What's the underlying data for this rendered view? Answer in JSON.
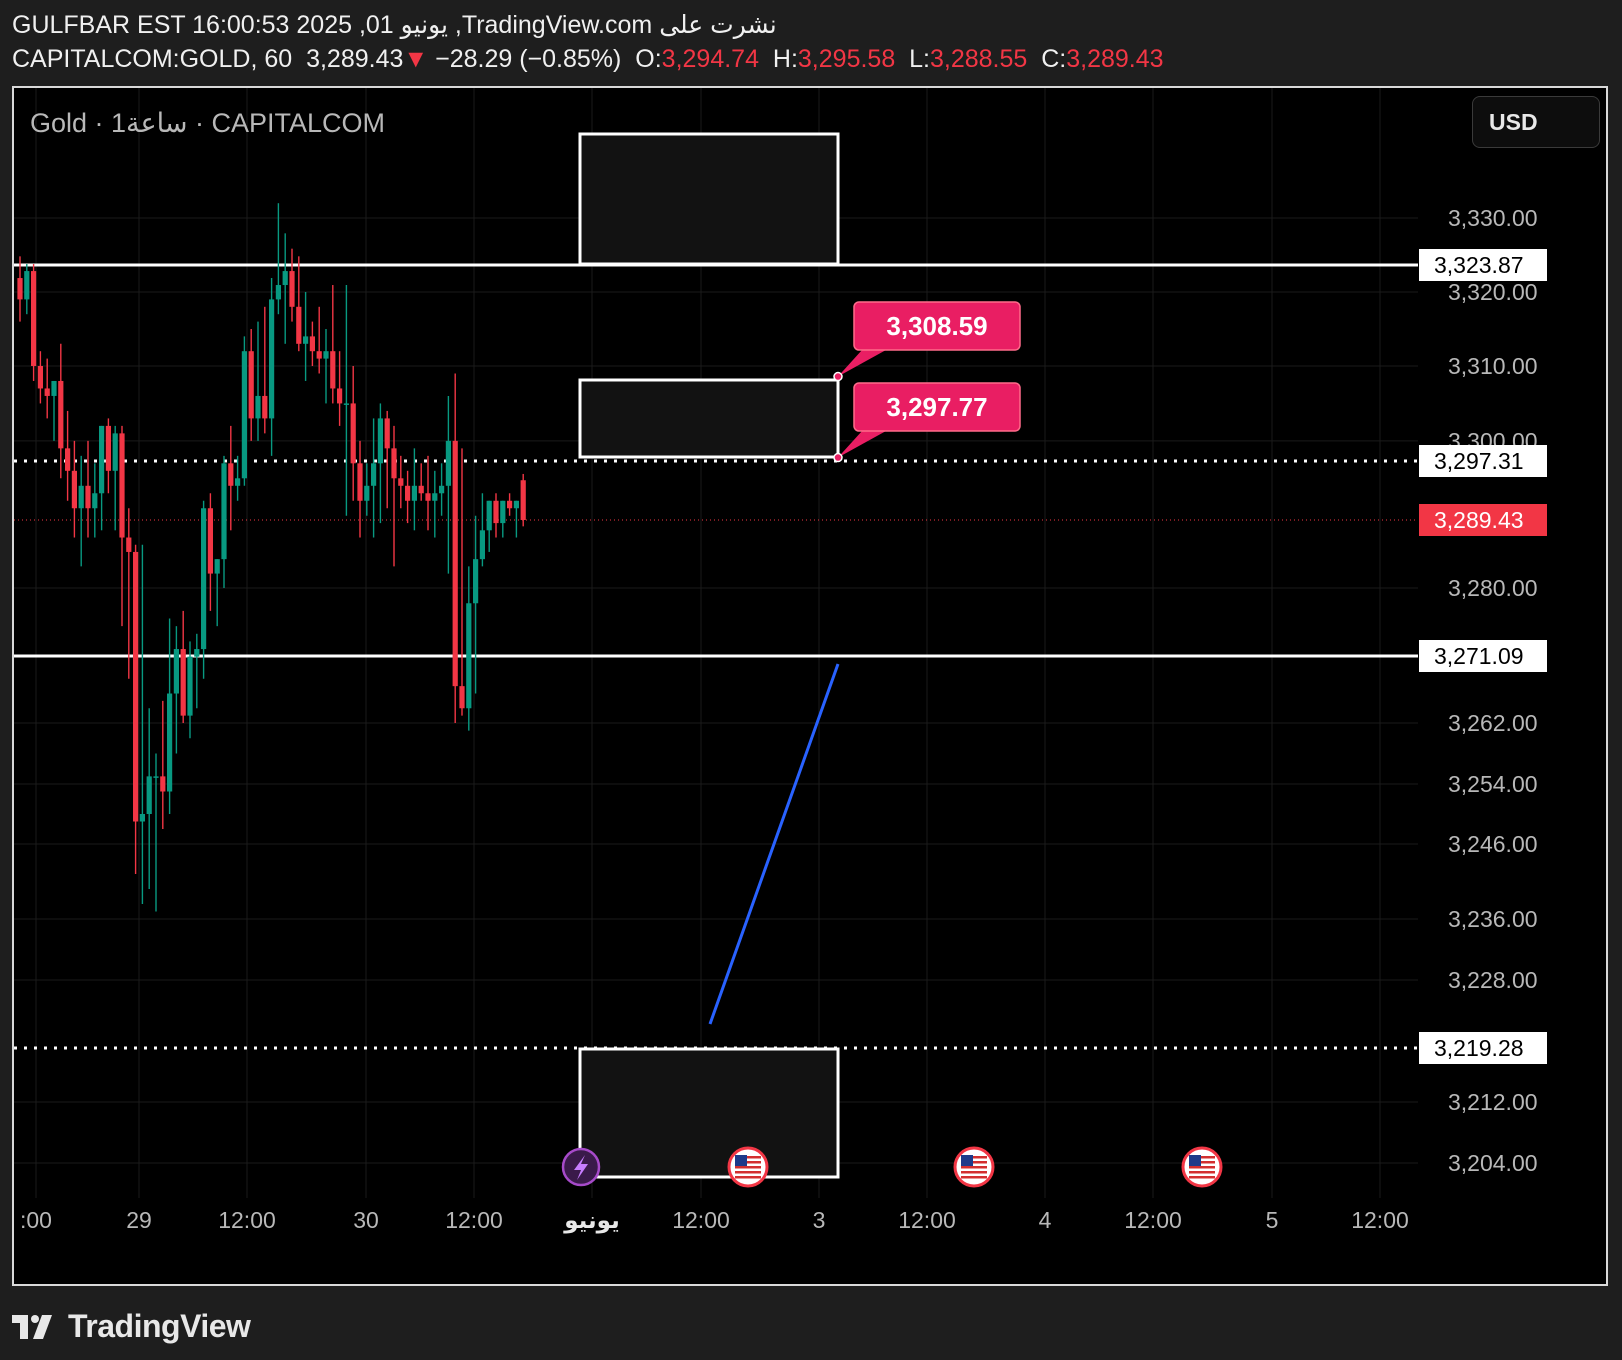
{
  "header": {
    "line1": "GULFBAR EST 16:00:53 2025 ,01 يونيو ,TradingView.com نشرت على",
    "symbol": "CAPITALCOM:GOLD, 60",
    "last": "3,289.43",
    "change": "−28.29 (−0.85%)",
    "o_label": "O:",
    "o": "3,294.74",
    "h_label": "H:",
    "h": "3,295.58",
    "l_label": "L:",
    "l": "3,288.55",
    "c_label": "C:",
    "c": "3,289.43"
  },
  "legend": "Gold · 1ساعة · CAPITALCOM",
  "currency_button": "USD",
  "footer": {
    "brand": "TradingView"
  },
  "colors": {
    "up": "#089981",
    "down": "#f23645",
    "price_label": "#f23645",
    "callout": "#e91e63",
    "trendline": "#2962ff",
    "grid": "#1a1a1a"
  },
  "chart_data": {
    "type": "candlestick",
    "interval": "60",
    "instrument": "CAPITALCOM:GOLD",
    "current_price": 3289.43,
    "y_tick_labels": [
      "3,330.00",
      "3,320.00",
      "3,310.00",
      "3,300.00",
      "3,280.00",
      "3,262.00",
      "3,254.00",
      "3,246.00",
      "3,236.00",
      "3,228.00",
      "3,212.00",
      "3,204.00"
    ],
    "y_ticks": [
      3330,
      3320,
      3310,
      3300,
      3280,
      3262,
      3254,
      3246,
      3236,
      3228,
      3212,
      3204
    ],
    "x_tick_labels": [
      ":00",
      "29",
      "12:00",
      "30",
      "12:00",
      "يونيو",
      "12:00",
      "3",
      "12:00",
      "4",
      "12:00",
      "5",
      "12:00"
    ],
    "price_labels": [
      {
        "label": "3,323.87",
        "value": 3323.87,
        "style": "white"
      },
      {
        "label": "3,297.31",
        "value": 3297.31,
        "style": "white"
      },
      {
        "label": "3,289.43",
        "value": 3289.43,
        "style": "red"
      },
      {
        "label": "3,271.09",
        "value": 3271.09,
        "style": "white"
      },
      {
        "label": "3,219.28",
        "value": 3219.28,
        "style": "white"
      }
    ],
    "horizontal_lines": [
      {
        "value": 3323.87,
        "style": "solid"
      },
      {
        "value": 3297.31,
        "style": "dotted"
      },
      {
        "value": 3271.09,
        "style": "solid"
      },
      {
        "value": 3219.28,
        "style": "dotted"
      },
      {
        "value": 3289.43,
        "style": "current"
      }
    ],
    "callouts": [
      {
        "label": "3,308.59",
        "value": 3308.59
      },
      {
        "label": "3,297.77",
        "value": 3297.77
      }
    ],
    "candles": [
      {
        "o": 3322,
        "h": 3325,
        "l": 3316,
        "c": 3319
      },
      {
        "o": 3319,
        "h": 3324,
        "l": 3317,
        "c": 3323
      },
      {
        "o": 3323,
        "h": 3324,
        "l": 3308,
        "c": 3310
      },
      {
        "o": 3310,
        "h": 3312,
        "l": 3305,
        "c": 3307
      },
      {
        "o": 3307,
        "h": 3311,
        "l": 3303,
        "c": 3306
      },
      {
        "o": 3306,
        "h": 3308,
        "l": 3300,
        "c": 3308
      },
      {
        "o": 3308,
        "h": 3313,
        "l": 3295,
        "c": 3299
      },
      {
        "o": 3299,
        "h": 3304,
        "l": 3292,
        "c": 3296
      },
      {
        "o": 3296,
        "h": 3300,
        "l": 3287,
        "c": 3291
      },
      {
        "o": 3291,
        "h": 3298,
        "l": 3283,
        "c": 3294
      },
      {
        "o": 3294,
        "h": 3300,
        "l": 3287,
        "c": 3291
      },
      {
        "o": 3291,
        "h": 3297,
        "l": 3287,
        "c": 3293
      },
      {
        "o": 3293,
        "h": 3302,
        "l": 3288,
        "c": 3302
      },
      {
        "o": 3302,
        "h": 3303,
        "l": 3293,
        "c": 3296
      },
      {
        "o": 3296,
        "h": 3302,
        "l": 3288,
        "c": 3301
      },
      {
        "o": 3301,
        "h": 3302,
        "l": 3275,
        "c": 3287
      },
      {
        "o": 3287,
        "h": 3291,
        "l": 3268,
        "c": 3285
      },
      {
        "o": 3285,
        "h": 3286,
        "l": 3242,
        "c": 3249
      },
      {
        "o": 3249,
        "h": 3286,
        "l": 3238,
        "c": 3250
      },
      {
        "o": 3250,
        "h": 3264,
        "l": 3240,
        "c": 3255
      },
      {
        "o": 3255,
        "h": 3258,
        "l": 3237,
        "c": 3255
      },
      {
        "o": 3255,
        "h": 3265,
        "l": 3248,
        "c": 3253
      },
      {
        "o": 3253,
        "h": 3276,
        "l": 3250,
        "c": 3266
      },
      {
        "o": 3266,
        "h": 3275,
        "l": 3258,
        "c": 3272
      },
      {
        "o": 3272,
        "h": 3277,
        "l": 3262,
        "c": 3263
      },
      {
        "o": 3263,
        "h": 3273,
        "l": 3260,
        "c": 3271
      },
      {
        "o": 3271,
        "h": 3274,
        "l": 3264,
        "c": 3272
      },
      {
        "o": 3272,
        "h": 3292,
        "l": 3268,
        "c": 3291
      },
      {
        "o": 3291,
        "h": 3293,
        "l": 3277,
        "c": 3282
      },
      {
        "o": 3282,
        "h": 3284,
        "l": 3275,
        "c": 3284
      },
      {
        "o": 3284,
        "h": 3298,
        "l": 3280,
        "c": 3297
      },
      {
        "o": 3297,
        "h": 3302,
        "l": 3288,
        "c": 3294
      },
      {
        "o": 3294,
        "h": 3298,
        "l": 3292,
        "c": 3295
      },
      {
        "o": 3295,
        "h": 3314,
        "l": 3294,
        "c": 3312
      },
      {
        "o": 3312,
        "h": 3315,
        "l": 3300,
        "c": 3303
      },
      {
        "o": 3303,
        "h": 3316,
        "l": 3300,
        "c": 3306
      },
      {
        "o": 3306,
        "h": 3318,
        "l": 3301,
        "c": 3303
      },
      {
        "o": 3303,
        "h": 3322,
        "l": 3298,
        "c": 3319
      },
      {
        "o": 3319,
        "h": 3332,
        "l": 3317,
        "c": 3321
      },
      {
        "o": 3321,
        "h": 3328,
        "l": 3313,
        "c": 3323
      },
      {
        "o": 3323,
        "h": 3326,
        "l": 3316,
        "c": 3318
      },
      {
        "o": 3318,
        "h": 3325,
        "l": 3312,
        "c": 3313
      },
      {
        "o": 3313,
        "h": 3320,
        "l": 3308,
        "c": 3314
      },
      {
        "o": 3314,
        "h": 3316,
        "l": 3310,
        "c": 3312
      },
      {
        "o": 3312,
        "h": 3318,
        "l": 3309,
        "c": 3311
      },
      {
        "o": 3311,
        "h": 3315,
        "l": 3305,
        "c": 3312
      },
      {
        "o": 3312,
        "h": 3321,
        "l": 3305,
        "c": 3307
      },
      {
        "o": 3307,
        "h": 3312,
        "l": 3302,
        "c": 3305
      },
      {
        "o": 3305,
        "h": 3321,
        "l": 3290,
        "c": 3305
      },
      {
        "o": 3305,
        "h": 3310,
        "l": 3292,
        "c": 3297
      },
      {
        "o": 3297,
        "h": 3300,
        "l": 3287,
        "c": 3292
      },
      {
        "o": 3292,
        "h": 3297,
        "l": 3290,
        "c": 3294
      },
      {
        "o": 3294,
        "h": 3303,
        "l": 3287,
        "c": 3297
      },
      {
        "o": 3297,
        "h": 3305,
        "l": 3289,
        "c": 3303
      },
      {
        "o": 3303,
        "h": 3304,
        "l": 3291,
        "c": 3299
      },
      {
        "o": 3299,
        "h": 3302,
        "l": 3283,
        "c": 3295
      },
      {
        "o": 3295,
        "h": 3298,
        "l": 3291,
        "c": 3294
      },
      {
        "o": 3294,
        "h": 3296,
        "l": 3289,
        "c": 3292
      },
      {
        "o": 3292,
        "h": 3299,
        "l": 3288,
        "c": 3294
      },
      {
        "o": 3294,
        "h": 3297,
        "l": 3292,
        "c": 3293
      },
      {
        "o": 3293,
        "h": 3298,
        "l": 3288,
        "c": 3292
      },
      {
        "o": 3292,
        "h": 3296,
        "l": 3287,
        "c": 3293
      },
      {
        "o": 3293,
        "h": 3297,
        "l": 3290,
        "c": 3294
      },
      {
        "o": 3294,
        "h": 3306,
        "l": 3282,
        "c": 3300
      },
      {
        "o": 3300,
        "h": 3309,
        "l": 3262,
        "c": 3267
      },
      {
        "o": 3267,
        "h": 3299,
        "l": 3263,
        "c": 3264
      },
      {
        "o": 3264,
        "h": 3283,
        "l": 3261,
        "c": 3278
      },
      {
        "o": 3278,
        "h": 3290,
        "l": 3266,
        "c": 3284
      },
      {
        "o": 3284,
        "h": 3293,
        "l": 3283,
        "c": 3288
      },
      {
        "o": 3288,
        "h": 3292,
        "l": 3285,
        "c": 3292
      },
      {
        "o": 3292,
        "h": 3293,
        "l": 3287,
        "c": 3289
      },
      {
        "o": 3289,
        "h": 3292,
        "l": 3287,
        "c": 3292
      },
      {
        "o": 3292,
        "h": 3293,
        "l": 3290,
        "c": 3291
      },
      {
        "o": 3291,
        "h": 3292,
        "l": 3287,
        "c": 3292
      },
      {
        "o": 3294.74,
        "h": 3295.58,
        "l": 3288.55,
        "c": 3289.43
      }
    ]
  }
}
